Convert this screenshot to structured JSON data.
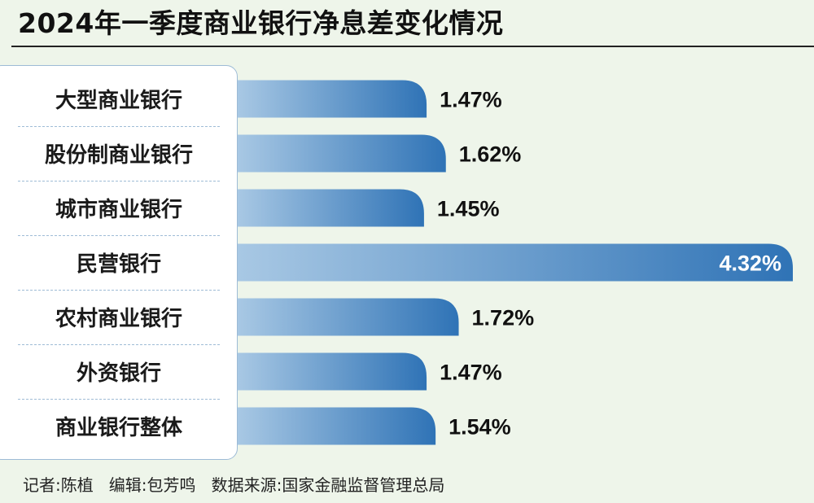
{
  "title": "2024年一季度商业银行净息差变化情况",
  "footer": "记者:陈植   编辑:包芳鸣   数据来源:国家金融监督管理总局",
  "colors": {
    "background": "#eef5ea",
    "bar_light": "#a8c8e4",
    "bar_dark": "#2f73b6",
    "label_panel": "#ffffff",
    "separator": "#9fbcd6"
  },
  "chart_data": {
    "type": "bar",
    "orientation": "horizontal",
    "categories": [
      "大型商业银行",
      "股份制商业银行",
      "城市商业银行",
      "民营银行",
      "农村商业银行",
      "外资银行",
      "商业银行整体"
    ],
    "values": [
      1.47,
      1.62,
      1.45,
      4.32,
      1.72,
      1.47,
      1.54
    ],
    "value_labels": [
      "1.47%",
      "1.62%",
      "1.45%",
      "4.32%",
      "1.72%",
      "1.47%",
      "1.54%"
    ],
    "unit": "%",
    "xlim": [
      0,
      4.32
    ],
    "grid": false,
    "legend": "none"
  }
}
